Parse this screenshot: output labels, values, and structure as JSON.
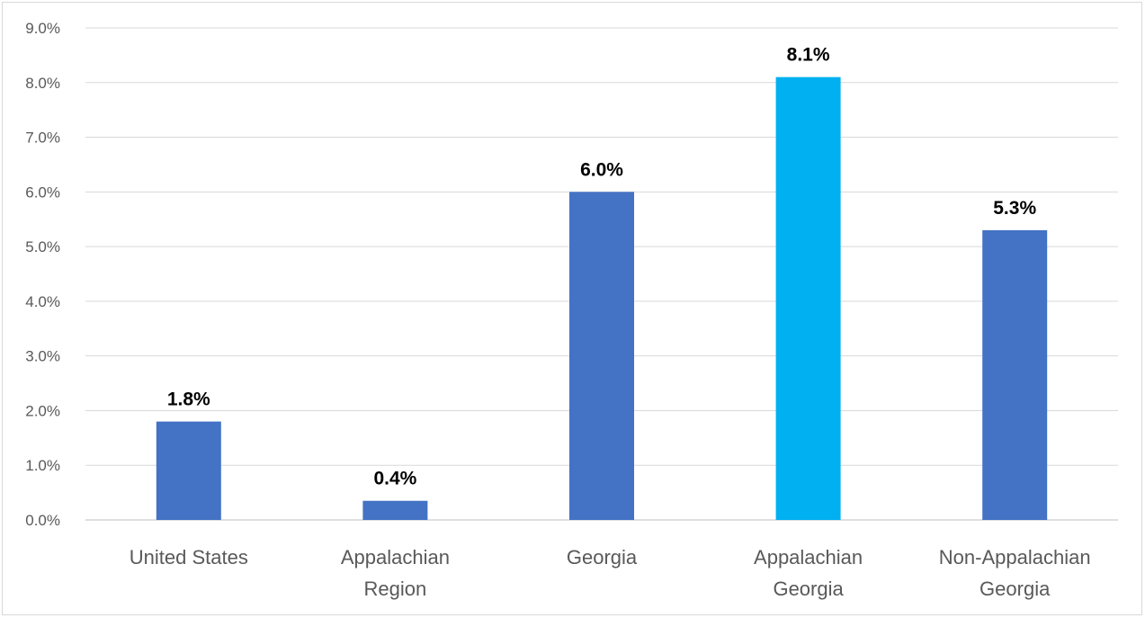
{
  "chart_data": {
    "type": "bar",
    "title": "",
    "xlabel": "",
    "ylabel": "",
    "categories": [
      [
        "United States"
      ],
      [
        "Appalachian",
        "Region"
      ],
      [
        "Georgia"
      ],
      [
        "Appalachian",
        "Georgia"
      ],
      [
        "Non-Appalachian",
        "Georgia"
      ]
    ],
    "values": [
      1.8,
      0.35,
      6.0,
      8.1,
      5.3
    ],
    "data_labels": [
      "1.8%",
      "0.4%",
      "6.0%",
      "8.1%",
      "5.3%"
    ],
    "bar_colors": [
      "#4472c4",
      "#4472c4",
      "#4472c4",
      "#00b0f0",
      "#4472c4"
    ],
    "ylim": [
      0,
      9
    ],
    "yticks": [
      "0.0%",
      "1.0%",
      "2.0%",
      "3.0%",
      "4.0%",
      "5.0%",
      "6.0%",
      "7.0%",
      "8.0%",
      "9.0%"
    ],
    "grid": true,
    "legend": "none",
    "colors": {
      "gridline": "#d9d9d9",
      "axis": "#bfbfbf",
      "tick_text": "#595959",
      "label_text": "#000000"
    }
  }
}
